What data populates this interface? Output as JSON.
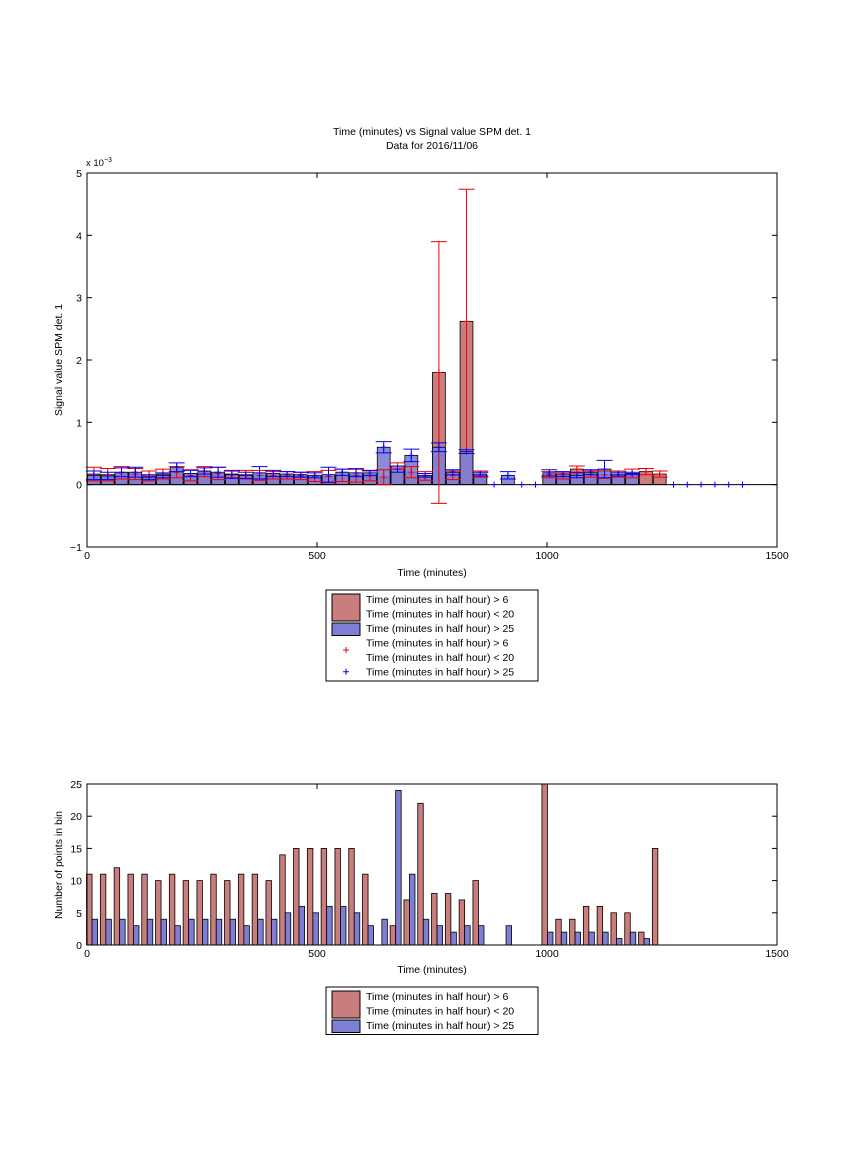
{
  "colors": {
    "group1_fill": "#c97d7d",
    "group2_fill": "#7e7ed4",
    "group1_marker": "#ee0000",
    "group2_marker": "#0000ee",
    "axis": "#000000",
    "background": "#ffffff"
  },
  "chart_data": [
    {
      "type": "bar",
      "title_line1": "Time (minutes) vs Signal value SPM det. 1",
      "title_line2": "Data for 2016/11/06",
      "xlabel": "Time (minutes)",
      "ylabel": "Signal value SPM det. 1",
      "exponent_label": "x 10",
      "exponent_power": "−3",
      "xlim": [
        0,
        1500
      ],
      "ylim": [
        -1,
        5
      ],
      "xticks": [
        "0",
        "500",
        "1000",
        "1500"
      ],
      "yticks": [
        "−1",
        "0",
        "1",
        "2",
        "3",
        "4",
        "5"
      ],
      "bar_width": 28,
      "legend": [
        {
          "kind": "bar",
          "series": "g1",
          "lines": [
            "Time (minutes in half hour) > 6",
            "Time (minutes in half hour) < 20"
          ]
        },
        {
          "kind": "bar",
          "series": "g2",
          "lines": [
            "Time (minutes in half hour) > 25"
          ]
        },
        {
          "kind": "marker",
          "series": "g1",
          "lines": [
            "Time (minutes in half hour) > 6",
            "Time (minutes in half hour) < 20"
          ]
        },
        {
          "kind": "marker",
          "series": "g2",
          "lines": [
            "Time (minutes in half hour) > 25"
          ]
        }
      ],
      "series": [
        {
          "id": "g1",
          "x": [
            15,
            45,
            75,
            105,
            135,
            165,
            195,
            225,
            255,
            285,
            315,
            345,
            375,
            405,
            435,
            465,
            495,
            525,
            555,
            585,
            615,
            645,
            675,
            705,
            735,
            765,
            795,
            825,
            855,
            1005,
            1035,
            1065,
            1095,
            1125,
            1155,
            1185,
            1215,
            1245
          ],
          "mean": [
            0.17,
            0.16,
            0.19,
            0.17,
            0.14,
            0.17,
            0.2,
            0.15,
            0.21,
            0.18,
            0.17,
            0.16,
            0.15,
            0.15,
            0.15,
            0.14,
            0.13,
            0.13,
            0.15,
            0.15,
            0.14,
            0.12,
            0.3,
            0.2,
            0.14,
            1.8,
            0.15,
            2.62,
            0.17,
            0.16,
            0.14,
            0.25,
            0.17,
            0.16,
            0.17,
            0.18,
            0.21,
            0.17
          ],
          "err": [
            0.11,
            0.1,
            0.1,
            0.09,
            0.08,
            0.08,
            0.09,
            0.09,
            0.08,
            0.1,
            0.06,
            0.07,
            0.08,
            0.06,
            0.06,
            0.06,
            0.08,
            0.1,
            0.1,
            0.11,
            0.08,
            0.12,
            0.05,
            0.09,
            0.07,
            2.1,
            0.07,
            2.12,
            0.05,
            0.05,
            0.05,
            0.05,
            0.05,
            0.06,
            0.05,
            0.07,
            0.05,
            0.05
          ]
        },
        {
          "id": "g2",
          "x": [
            15,
            45,
            75,
            105,
            135,
            165,
            195,
            225,
            255,
            285,
            315,
            345,
            375,
            405,
            435,
            465,
            495,
            525,
            555,
            585,
            615,
            645,
            675,
            705,
            735,
            765,
            795,
            825,
            855,
            915,
            1005,
            1035,
            1065,
            1095,
            1125,
            1155,
            1185
          ],
          "mean": [
            0.15,
            0.14,
            0.2,
            0.2,
            0.12,
            0.15,
            0.28,
            0.18,
            0.22,
            0.2,
            0.16,
            0.15,
            0.19,
            0.18,
            0.17,
            0.16,
            0.15,
            0.16,
            0.2,
            0.19,
            0.19,
            0.6,
            0.25,
            0.47,
            0.15,
            0.6,
            0.2,
            0.53,
            0.17,
            0.15,
            0.19,
            0.17,
            0.15,
            0.2,
            0.25,
            0.17,
            0.18
          ],
          "err": [
            0.07,
            0.06,
            0.07,
            0.08,
            0.04,
            0.04,
            0.07,
            0.05,
            0.05,
            0.08,
            0.06,
            0.05,
            0.1,
            0.05,
            0.04,
            0.04,
            0.04,
            0.12,
            0.05,
            0.06,
            0.04,
            0.09,
            0.05,
            0.1,
            0.03,
            0.07,
            0.04,
            0.03,
            0.03,
            0.06,
            0.05,
            0.04,
            0.04,
            0.04,
            0.14,
            0.03,
            0.02
          ]
        }
      ],
      "empty_markers_x": [
        885,
        945,
        975,
        1275,
        1305,
        1335,
        1365,
        1395,
        1425
      ]
    },
    {
      "type": "bar",
      "xlabel": "Time (minutes)",
      "ylabel": "Number of points in bin",
      "xlim": [
        0,
        1500
      ],
      "ylim": [
        0,
        25
      ],
      "xticks": [
        "0",
        "500",
        "1000",
        "1500"
      ],
      "yticks": [
        "0",
        "5",
        "10",
        "15",
        "20",
        "25"
      ],
      "bar_width": 12,
      "legend": [
        {
          "kind": "bar",
          "series": "g1",
          "lines": [
            "Time (minutes in half hour) > 6",
            "Time (minutes in half hour) < 20"
          ]
        },
        {
          "kind": "bar",
          "series": "g2",
          "lines": [
            "Time (minutes in half hour) > 25"
          ]
        }
      ],
      "series": [
        {
          "id": "g1",
          "x": [
            5,
            35,
            65,
            95,
            125,
            155,
            185,
            215,
            245,
            275,
            305,
            335,
            365,
            395,
            425,
            455,
            485,
            515,
            545,
            575,
            605,
            665,
            695,
            725,
            755,
            785,
            815,
            845,
            995,
            1025,
            1055,
            1085,
            1115,
            1145,
            1175,
            1205,
            1235
          ],
          "counts": [
            11,
            11,
            12,
            11,
            11,
            10,
            11,
            10,
            10,
            11,
            10,
            11,
            11,
            10,
            14,
            15,
            15,
            15,
            15,
            15,
            11,
            3,
            7,
            22,
            8,
            8,
            7,
            10,
            25,
            4,
            4,
            6,
            6,
            5,
            5,
            2,
            15
          ]
        },
        {
          "id": "g2",
          "x": [
            17,
            47,
            77,
            107,
            137,
            167,
            197,
            227,
            257,
            287,
            317,
            347,
            377,
            407,
            437,
            467,
            497,
            527,
            557,
            587,
            617,
            647,
            677,
            707,
            737,
            767,
            797,
            827,
            857,
            917,
            1007,
            1037,
            1067,
            1097,
            1127,
            1157,
            1187,
            1217
          ],
          "counts": [
            4,
            4,
            4,
            3,
            4,
            4,
            3,
            4,
            4,
            4,
            4,
            3,
            4,
            4,
            5,
            6,
            5,
            6,
            6,
            5,
            3,
            4,
            24,
            11,
            4,
            3,
            2,
            3,
            3,
            3,
            2,
            2,
            2,
            2,
            2,
            1,
            2,
            1
          ]
        }
      ]
    }
  ]
}
